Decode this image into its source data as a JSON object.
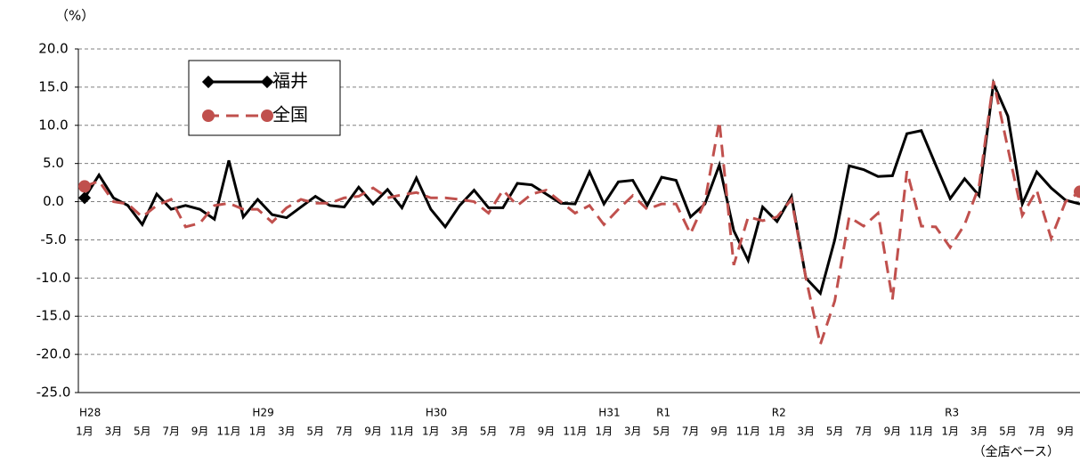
{
  "chart_data": {
    "type": "line",
    "unit_label": "（%）",
    "note": "（全店ベース）",
    "categories": [
      "1月",
      null,
      "3月",
      null,
      "5月",
      null,
      "7月",
      null,
      "9月",
      null,
      "11月",
      null,
      "1月",
      null,
      "3月",
      null,
      "5月",
      null,
      "7月",
      null,
      "9月",
      null,
      "11月",
      null,
      "1月",
      null,
      "3月",
      null,
      "5月",
      null,
      "7月",
      null,
      "9月",
      null,
      "11月",
      null,
      "1月",
      null,
      "3月",
      null,
      "5月",
      null,
      "7月",
      null,
      "9月",
      null,
      "11月",
      null,
      "1月",
      null,
      "3月",
      null,
      "5月",
      null,
      "7月",
      null,
      "9月",
      null,
      "11月",
      null,
      "1月",
      null,
      "3月",
      null,
      "5月",
      null,
      "7月",
      null,
      "9月",
      null
    ],
    "era_labels": [
      "H28",
      null,
      null,
      null,
      null,
      null,
      null,
      null,
      null,
      null,
      null,
      null,
      "H29",
      null,
      null,
      null,
      null,
      null,
      null,
      null,
      null,
      null,
      null,
      null,
      "H30",
      null,
      null,
      null,
      null,
      null,
      null,
      null,
      null,
      null,
      null,
      null,
      "H31",
      null,
      null,
      null,
      "R1",
      null,
      null,
      null,
      null,
      null,
      null,
      null,
      "R2",
      null,
      null,
      null,
      null,
      null,
      null,
      null,
      null,
      null,
      null,
      null,
      "R3",
      null,
      null,
      null,
      null,
      null,
      null,
      null,
      null,
      null
    ],
    "series": [
      {
        "name": "福井",
        "color": "#000000",
        "dash": false,
        "marker": "diamond",
        "values": [
          0.5,
          3.5,
          0.5,
          -0.5,
          -3.0,
          1.0,
          -1.0,
          -0.5,
          -1.0,
          -2.3,
          5.4,
          -2.0,
          0.3,
          -1.7,
          -2.1,
          -0.7,
          0.7,
          -0.5,
          -0.7,
          1.9,
          -0.3,
          1.6,
          -0.8,
          3.1,
          -1.0,
          -3.3,
          -0.5,
          1.5,
          -0.8,
          -0.8,
          2.4,
          2.2,
          1.0,
          -0.2,
          -0.3,
          3.9,
          -0.3,
          2.6,
          2.8,
          -0.5,
          3.2,
          2.8,
          -2.0,
          -0.3,
          4.8,
          -3.8,
          -7.7,
          -0.7,
          -2.6,
          0.7,
          -10.0,
          -12.0,
          -5.0,
          4.7,
          4.2,
          3.3,
          3.4,
          8.9,
          9.3,
          4.8,
          0.4,
          3.0,
          0.8,
          15.5,
          11.2,
          -0.3,
          3.9,
          1.8,
          0.2,
          -0.3
        ]
      },
      {
        "name": "全国",
        "color": "#c0504d",
        "dash": true,
        "marker": "circle",
        "values": [
          2.0,
          2.7,
          0.0,
          -0.3,
          -2.0,
          -0.5,
          0.3,
          -3.3,
          -2.8,
          -0.5,
          -0.2,
          -1.0,
          -1.0,
          -2.7,
          -0.8,
          0.3,
          -0.2,
          -0.2,
          0.5,
          0.7,
          1.8,
          0.5,
          0.9,
          1.2,
          0.5,
          0.5,
          0.3,
          0.0,
          -1.5,
          1.5,
          -0.5,
          1.0,
          1.5,
          0.0,
          -1.5,
          -0.5,
          -3.0,
          -1.0,
          0.8,
          -1.0,
          -0.3,
          -0.3,
          -4.2,
          0.0,
          10.5,
          -8.3,
          -2.0,
          -2.5,
          -2.0,
          0.3,
          -10.0,
          -18.7,
          -13.0,
          -2.0,
          -3.2,
          -1.5,
          -12.8,
          4.0,
          -3.2,
          -3.3,
          -6.0,
          -3.0,
          2.0,
          15.8,
          7.0,
          -1.8,
          1.5,
          -4.8,
          0.0,
          1.3
        ]
      }
    ],
    "ylim": [
      -25,
      20
    ],
    "yticks": [
      {
        "value": -25,
        "label": "-25.0"
      },
      {
        "value": -20,
        "label": "-20.0"
      },
      {
        "value": -15,
        "label": "-15.0"
      },
      {
        "value": -10,
        "label": "-10.0"
      },
      {
        "value": -5,
        "label": "-5.0"
      },
      {
        "value": 0,
        "label": "0.0"
      },
      {
        "value": 5,
        "label": "5.0"
      },
      {
        "value": 10,
        "label": "10.0"
      },
      {
        "value": 15,
        "label": "15.0"
      },
      {
        "value": 20,
        "label": "20.0"
      }
    ],
    "grid": true
  }
}
